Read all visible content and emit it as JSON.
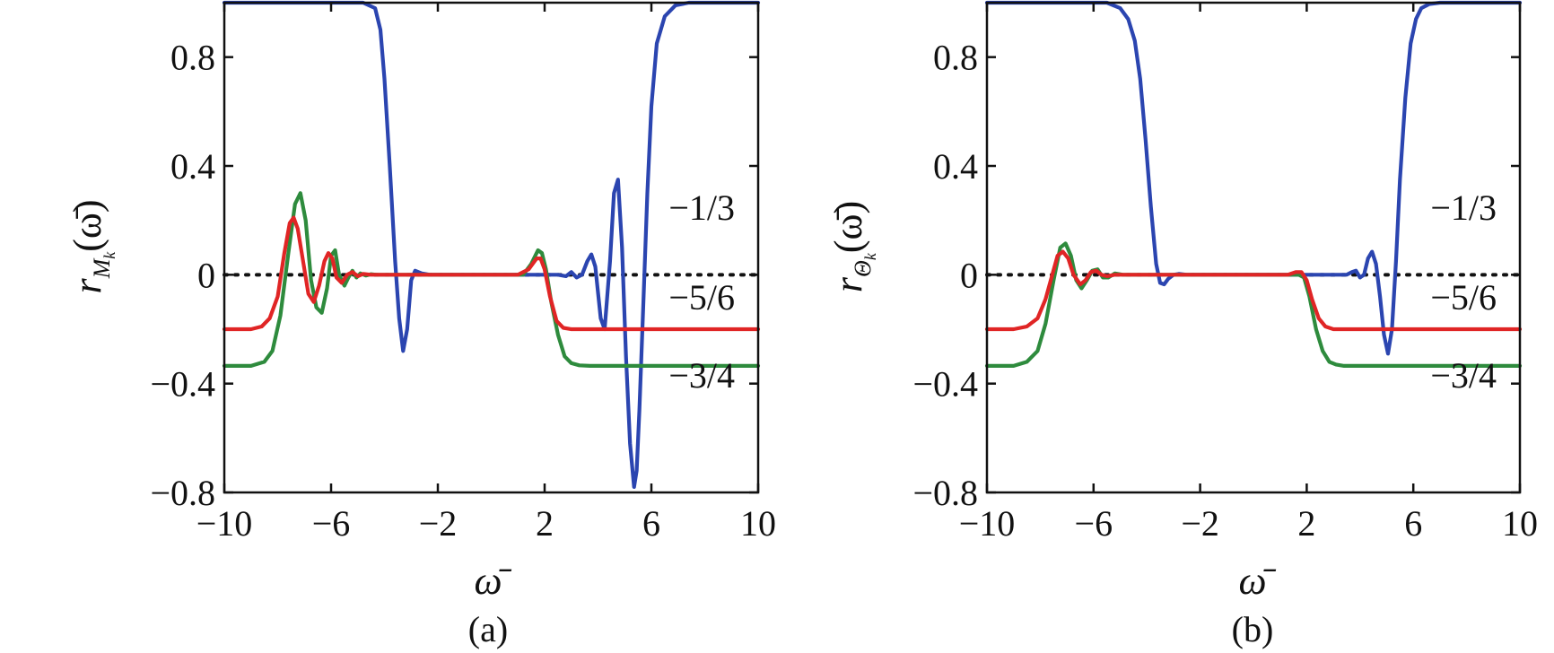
{
  "chart_data": [
    {
      "type": "line",
      "caption": "(a)",
      "xlabel": "ω̄",
      "ylabel": {
        "main": "r",
        "sub": "M",
        "subsub": "k",
        "arg": "(ω̄)"
      },
      "xlim": [
        -10,
        10
      ],
      "ylim": [
        -0.8,
        1.0
      ],
      "xticks": [
        -10,
        -6,
        -2,
        2,
        6,
        10
      ],
      "xtick_labels": [
        "−10",
        "−6",
        "−2",
        "2",
        "6",
        "10"
      ],
      "yticks": [
        -0.8,
        -0.4,
        0,
        0.4,
        0.8
      ],
      "ytick_labels": [
        "−0.8",
        "−0.4",
        "0",
        "0.4",
        "0.8"
      ],
      "grid": false,
      "reference_line": {
        "y": 0,
        "style": "dotted"
      },
      "series": [
        {
          "label": "−1/3",
          "color": "#2b45b0",
          "x": [
            -10,
            -4.8,
            -4.35,
            -4.15,
            -4.0,
            -3.8,
            -3.6,
            -3.45,
            -3.3,
            -3.15,
            -3.0,
            -2.85,
            -2.6,
            -2.3,
            2.5,
            2.8,
            3.0,
            3.2,
            3.4,
            3.6,
            3.75,
            3.9,
            4.1,
            4.25,
            4.45,
            4.6,
            4.75,
            4.9,
            5.05,
            5.2,
            5.35,
            5.45,
            5.55,
            5.7,
            5.85,
            6.0,
            6.2,
            6.5,
            6.9,
            7.4,
            10
          ],
          "y": [
            1.0,
            1.0,
            0.98,
            0.9,
            0.72,
            0.4,
            0.05,
            -0.16,
            -0.28,
            -0.2,
            -0.02,
            0.015,
            0.005,
            0,
            0,
            -0.005,
            0.01,
            -0.01,
            0.0,
            0.05,
            0.075,
            0.03,
            -0.16,
            -0.2,
            0.05,
            0.3,
            0.35,
            0.1,
            -0.3,
            -0.62,
            -0.78,
            -0.72,
            -0.5,
            -0.1,
            0.3,
            0.62,
            0.85,
            0.95,
            0.99,
            1.0,
            1.0
          ]
        },
        {
          "label": "−3/4",
          "color": "#2e8b3d",
          "x": [
            -10,
            -9.0,
            -8.5,
            -8.2,
            -7.9,
            -7.6,
            -7.35,
            -7.15,
            -6.95,
            -6.75,
            -6.55,
            -6.35,
            -6.15,
            -6.0,
            -5.85,
            -5.7,
            -5.5,
            -5.35,
            -5.2,
            -5.05,
            -4.9,
            -4.7,
            -4.5,
            -4.3,
            -4.0,
            1.2,
            1.5,
            1.75,
            1.9,
            2.05,
            2.25,
            2.5,
            2.75,
            3.0,
            3.3,
            3.7,
            4.2,
            10
          ],
          "y": [
            -0.335,
            -0.335,
            -0.32,
            -0.28,
            -0.15,
            0.08,
            0.26,
            0.3,
            0.2,
            -0.02,
            -0.12,
            -0.14,
            -0.05,
            0.07,
            0.09,
            0.0,
            -0.04,
            -0.01,
            0.015,
            -0.01,
            0.005,
            -0.003,
            0.002,
            0,
            0,
            0,
            0.04,
            0.09,
            0.08,
            0.02,
            -0.1,
            -0.22,
            -0.3,
            -0.325,
            -0.333,
            -0.335,
            -0.335,
            -0.335
          ]
        },
        {
          "label": "−5/6",
          "color": "#e02525",
          "x": [
            -10,
            -9.0,
            -8.6,
            -8.3,
            -8.0,
            -7.75,
            -7.55,
            -7.4,
            -7.25,
            -7.05,
            -6.85,
            -6.65,
            -6.45,
            -6.25,
            -6.1,
            -5.95,
            -5.8,
            -5.6,
            -5.4,
            -5.2,
            -5.0,
            -4.8,
            -4.5,
            -4.2,
            1.0,
            1.4,
            1.7,
            1.85,
            2.0,
            2.2,
            2.45,
            2.7,
            3.0,
            3.4,
            10
          ],
          "y": [
            -0.2,
            -0.2,
            -0.19,
            -0.16,
            -0.08,
            0.08,
            0.19,
            0.21,
            0.17,
            0.05,
            -0.07,
            -0.1,
            -0.04,
            0.05,
            0.08,
            0.06,
            -0.01,
            -0.03,
            0.0,
            0.01,
            -0.005,
            0.003,
            0,
            0,
            0,
            0.02,
            0.06,
            0.06,
            0.02,
            -0.08,
            -0.17,
            -0.195,
            -0.2,
            -0.2,
            -0.2
          ]
        }
      ],
      "annotations": [
        "−1/3",
        "−5/6",
        "−3/4"
      ]
    },
    {
      "type": "line",
      "caption": "(b)",
      "xlabel": "ω̄",
      "ylabel": {
        "main": "r",
        "sub": "Θ",
        "subsub": "k",
        "arg": "(ω̄)"
      },
      "xlim": [
        -10,
        10
      ],
      "ylim": [
        -0.8,
        1.0
      ],
      "xticks": [
        -10,
        -6,
        -2,
        2,
        6,
        10
      ],
      "xtick_labels": [
        "−10",
        "−6",
        "−2",
        "2",
        "6",
        "10"
      ],
      "yticks": [
        -0.8,
        -0.4,
        0,
        0.4,
        0.8
      ],
      "ytick_labels": [
        "−0.8",
        "−0.4",
        "0",
        "0.4",
        "0.8"
      ],
      "grid": false,
      "reference_line": {
        "y": 0,
        "style": "dotted"
      },
      "series": [
        {
          "label": "−1/3",
          "color": "#2b45b0",
          "x": [
            -10,
            -5.5,
            -5.0,
            -4.7,
            -4.45,
            -4.25,
            -4.05,
            -3.85,
            -3.65,
            -3.5,
            -3.35,
            -3.2,
            -3.0,
            -2.8,
            -2.5,
            3.2,
            3.5,
            3.7,
            3.85,
            4.0,
            4.15,
            4.3,
            4.45,
            4.6,
            4.75,
            4.9,
            5.05,
            5.2,
            5.35,
            5.5,
            5.7,
            5.9,
            6.1,
            6.3,
            6.6,
            7.0,
            7.6,
            10
          ],
          "y": [
            1.0,
            1.0,
            0.98,
            0.94,
            0.86,
            0.72,
            0.5,
            0.25,
            0.04,
            -0.03,
            -0.035,
            -0.015,
            0.0,
            0.003,
            0,
            0,
            0.0,
            0.01,
            0.015,
            -0.01,
            0.0,
            0.06,
            0.085,
            0.04,
            -0.08,
            -0.22,
            -0.29,
            -0.2,
            0.05,
            0.35,
            0.65,
            0.85,
            0.94,
            0.98,
            0.995,
            1.0,
            1.0,
            1.0
          ]
        },
        {
          "label": "−3/4",
          "color": "#2e8b3d",
          "x": [
            -10,
            -9.0,
            -8.5,
            -8.1,
            -7.8,
            -7.5,
            -7.25,
            -7.05,
            -6.85,
            -6.65,
            -6.45,
            -6.25,
            -6.05,
            -5.85,
            -5.65,
            -5.45,
            -5.2,
            -4.9,
            -4.5,
            1.5,
            1.7,
            1.9,
            2.1,
            2.35,
            2.6,
            2.85,
            3.1,
            3.4,
            3.8,
            4.3,
            10
          ],
          "y": [
            -0.335,
            -0.335,
            -0.32,
            -0.28,
            -0.18,
            -0.02,
            0.1,
            0.115,
            0.07,
            -0.02,
            -0.05,
            -0.02,
            0.015,
            0.02,
            -0.01,
            -0.01,
            0.005,
            0,
            0,
            0,
            0.0,
            -0.01,
            -0.08,
            -0.2,
            -0.28,
            -0.32,
            -0.33,
            -0.335,
            -0.335,
            -0.335,
            -0.335
          ]
        },
        {
          "label": "−5/6",
          "color": "#e02525",
          "x": [
            -10,
            -9.0,
            -8.5,
            -8.1,
            -7.8,
            -7.55,
            -7.35,
            -7.15,
            -6.95,
            -6.75,
            -6.5,
            -6.3,
            -6.1,
            -5.9,
            -5.7,
            -5.5,
            -5.2,
            -4.8,
            1.3,
            1.6,
            1.8,
            2.0,
            2.2,
            2.45,
            2.7,
            3.0,
            3.4,
            10
          ],
          "y": [
            -0.2,
            -0.2,
            -0.19,
            -0.16,
            -0.09,
            0.0,
            0.07,
            0.085,
            0.06,
            0.0,
            -0.035,
            -0.02,
            0.01,
            0.015,
            0.0,
            -0.005,
            0.0,
            0,
            0,
            0.01,
            0.01,
            -0.02,
            -0.09,
            -0.16,
            -0.19,
            -0.2,
            -0.2,
            -0.2
          ]
        }
      ],
      "annotations": [
        "−1/3",
        "−5/6",
        "−3/4"
      ]
    }
  ]
}
